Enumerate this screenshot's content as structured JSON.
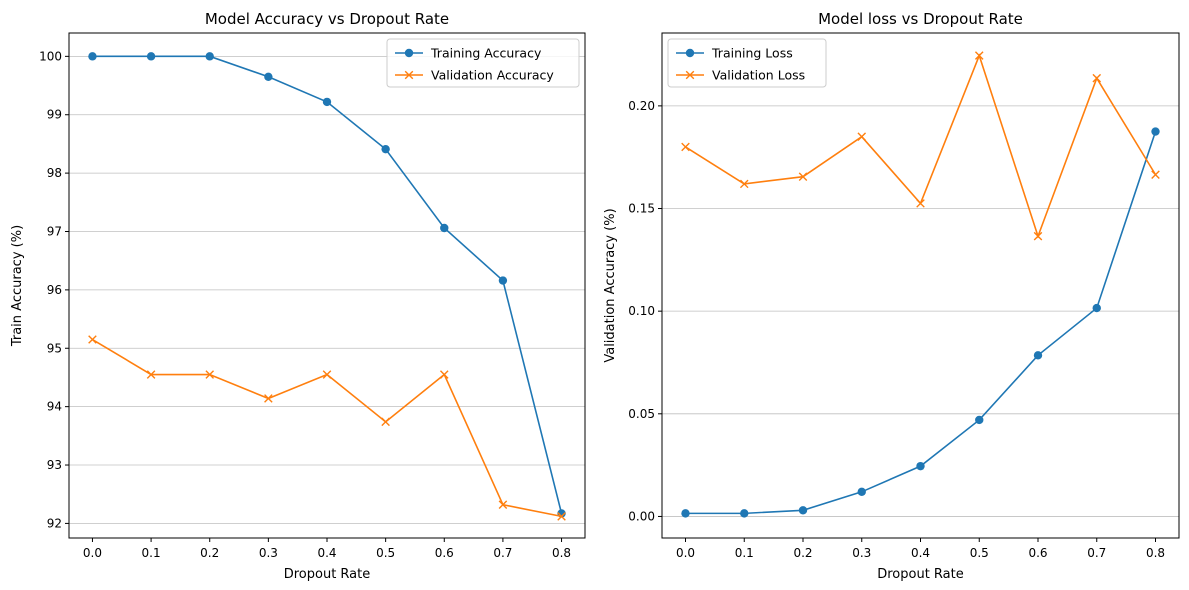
{
  "chart_data": [
    {
      "type": "line",
      "title": "Model Accuracy vs Dropout Rate",
      "xlabel": "Dropout Rate",
      "ylabel": "Train Accuracy (%)",
      "x": [
        0.0,
        0.1,
        0.2,
        0.3,
        0.4,
        0.5,
        0.6,
        0.7,
        0.8
      ],
      "xticks": [
        "0.0",
        "0.1",
        "0.2",
        "0.3",
        "0.4",
        "0.5",
        "0.6",
        "0.7",
        "0.8"
      ],
      "xlim": [
        -0.04,
        0.84
      ],
      "ylim": [
        91.75,
        100.4
      ],
      "yticks": [
        "92",
        "93",
        "94",
        "95",
        "96",
        "97",
        "98",
        "99",
        "100"
      ],
      "grid": "y",
      "legend": "upper right",
      "series": [
        {
          "name": "Training Accuracy",
          "color": "#1f77b4",
          "marker": "circle",
          "values": [
            100.0,
            100.0,
            100.0,
            99.65,
            99.22,
            98.41,
            97.06,
            96.16,
            92.17
          ]
        },
        {
          "name": "Validation Accuracy",
          "color": "#ff7f0e",
          "marker": "x",
          "values": [
            95.15,
            94.55,
            94.55,
            94.14,
            94.55,
            93.74,
            94.55,
            92.32,
            92.12
          ]
        }
      ]
    },
    {
      "type": "line",
      "title": "Model loss vs Dropout Rate",
      "xlabel": "Dropout Rate",
      "ylabel": "Validation Accuracy (%)",
      "x": [
        0.0,
        0.1,
        0.2,
        0.3,
        0.4,
        0.5,
        0.6,
        0.7,
        0.8
      ],
      "xticks": [
        "0.0",
        "0.1",
        "0.2",
        "0.3",
        "0.4",
        "0.5",
        "0.6",
        "0.7",
        "0.8"
      ],
      "xlim": [
        -0.04,
        0.84
      ],
      "ylim": [
        -0.0105,
        0.2355
      ],
      "yticks": [
        "0.00",
        "0.05",
        "0.10",
        "0.15",
        "0.20"
      ],
      "grid": "y",
      "legend": "upper left",
      "series": [
        {
          "name": "Training Loss",
          "color": "#1f77b4",
          "marker": "circle",
          "values": [
            0.0015,
            0.0015,
            0.003,
            0.012,
            0.0245,
            0.047,
            0.0785,
            0.1015,
            0.1875
          ]
        },
        {
          "name": "Validation Loss",
          "color": "#ff7f0e",
          "marker": "x",
          "values": [
            0.18,
            0.162,
            0.1655,
            0.185,
            0.1525,
            0.2245,
            0.1365,
            0.2135,
            0.1665
          ]
        }
      ]
    }
  ]
}
